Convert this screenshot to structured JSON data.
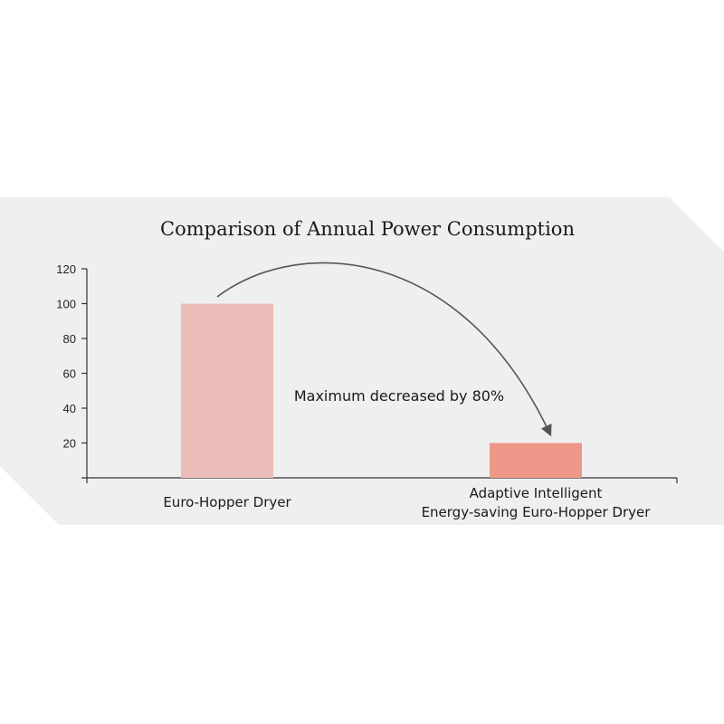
{
  "colors": {
    "background_panel": "#efefef",
    "bar_1": "#ecbcb8",
    "bar_2": "#ee9889",
    "axis": "#333333",
    "arrow": "#555555"
  },
  "chart_data": {
    "type": "bar",
    "title": "Comparison of Annual Power Consumption",
    "categories": [
      [
        "Euro-Hopper Dryer"
      ],
      [
        "Adaptive Intelligent",
        "Energy-saving Euro-Hopper Dryer"
      ]
    ],
    "values": [
      100,
      20
    ],
    "yticks": [
      "20",
      "40",
      "60",
      "80",
      "100",
      "120"
    ],
    "ytick_values": [
      20,
      40,
      60,
      80,
      100,
      120
    ],
    "ylim": [
      0,
      120
    ],
    "annotation": "Maximum decreased by 80%",
    "grid": false,
    "legend": "none"
  }
}
